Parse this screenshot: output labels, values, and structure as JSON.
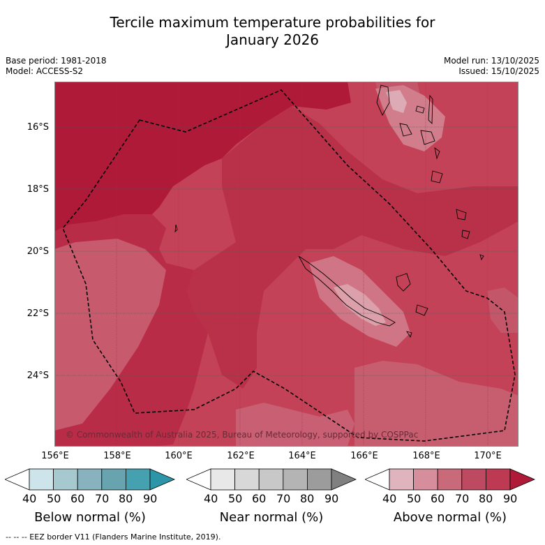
{
  "title": {
    "line1": "Tercile maximum temperature probabilities for",
    "line2": "January 2026"
  },
  "meta": {
    "base_period": "Base period: 1981-2018",
    "model": "Model: ACCESS-S2",
    "model_run": "Model run: 13/10/2025",
    "issued": "Issued: 15/10/2025"
  },
  "map": {
    "lat_labels": [
      "16°S",
      "18°S",
      "20°S",
      "22°S",
      "24°S"
    ],
    "lon_labels": [
      "156°E",
      "158°E",
      "160°E",
      "162°E",
      "164°E",
      "166°E",
      "168°E",
      "170°E"
    ],
    "copyright": "© Commonwealth of Australia 2025, Bureau of Meteorology, supported by COSPPac",
    "colors": {
      "a50": "#dfb4bd",
      "a60": "#d68e9c",
      "a70": "#c96a7b",
      "a80": "#bd3a52",
      "a90": "#ae1a38"
    }
  },
  "legends": [
    {
      "title": "Below normal (%)",
      "ticks": [
        "40",
        "50",
        "60",
        "70",
        "80",
        "90"
      ],
      "colors": [
        "#ffffff",
        "#cce4ea",
        "#a6c8cf",
        "#88b2bd",
        "#68a3b0",
        "#45a0b0",
        "#2c95a8"
      ]
    },
    {
      "title": "Near normal (%)",
      "ticks": [
        "40",
        "50",
        "60",
        "70",
        "80",
        "90"
      ],
      "colors": [
        "#ffffff",
        "#e8e8e8",
        "#d8d8d8",
        "#c8c8c8",
        "#b4b4b4",
        "#9c9c9c",
        "#808080"
      ]
    },
    {
      "title": "Above normal (%)",
      "ticks": [
        "40",
        "50",
        "60",
        "70",
        "80",
        "90"
      ],
      "colors": [
        "#ffffff",
        "#dfb4bd",
        "#d68e9c",
        "#c96a7b",
        "#bd4a60",
        "#bd3a52",
        "#ae1a38"
      ]
    }
  ],
  "footer": "--  --  -- EEZ border V11 (Flanders Marine Institute, 2019)."
}
